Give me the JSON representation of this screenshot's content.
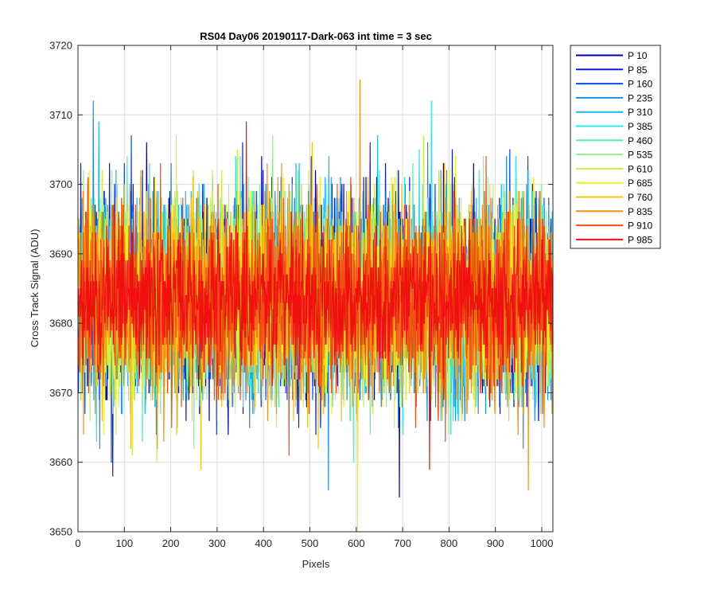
{
  "chart_data": {
    "type": "line",
    "title": "RS04 Day06 20190117-Dark-063 int time = 3 sec",
    "xlabel": "Pixels",
    "ylabel": "Cross Track Signal (ADU)",
    "xlim": [
      0,
      1024
    ],
    "ylim": [
      3650,
      3720
    ],
    "xticks": [
      "0",
      "100",
      "200",
      "300",
      "400",
      "500",
      "600",
      "700",
      "800",
      "900",
      "1000"
    ],
    "yticks": [
      "3650",
      "3660",
      "3670",
      "3680",
      "3690",
      "3700",
      "3710",
      "3720"
    ],
    "grid": true,
    "legend_position": "outside-top-right",
    "x": {
      "start": 1,
      "end": 1024,
      "step": 1
    },
    "series": [
      {
        "name": "P 10",
        "color": "#0000b0",
        "mean": 3683.5,
        "std": 7.0,
        "seed": 11,
        "extremes": [
          [
            148,
            3706
          ],
          [
            693,
            3655
          ]
        ]
      },
      {
        "name": "P 85",
        "color": "#0b1ad8",
        "mean": 3683.5,
        "std": 7.0,
        "seed": 23,
        "extremes": [
          [
            75,
            3658
          ],
          [
            355,
            3706
          ]
        ]
      },
      {
        "name": "P 160",
        "color": "#0050e8",
        "mean": 3683.5,
        "std": 7.0,
        "seed": 37,
        "extremes": [
          [
            115,
            3707
          ],
          [
            970,
            3704
          ]
        ]
      },
      {
        "name": "P 235",
        "color": "#1890f0",
        "mean": 3683.5,
        "std": 7.0,
        "seed": 41,
        "extremes": [
          [
            33,
            3712
          ],
          [
            540,
            3656
          ]
        ]
      },
      {
        "name": "P 310",
        "color": "#18b8f0",
        "mean": 3683.5,
        "std": 7.0,
        "seed": 53,
        "extremes": [
          [
            45,
            3709
          ],
          [
            470,
            3703
          ]
        ]
      },
      {
        "name": "P 385",
        "color": "#2ee8e8",
        "mean": 3683.5,
        "std": 7.0,
        "seed": 67,
        "extremes": [
          [
            762,
            3712
          ],
          [
            40,
            3663
          ]
        ]
      },
      {
        "name": "P 460",
        "color": "#5ee8c0",
        "mean": 3683.5,
        "std": 7.0,
        "seed": 71,
        "extremes": [
          [
            350,
            3704
          ],
          [
            630,
            3664
          ]
        ]
      },
      {
        "name": "P 535",
        "color": "#90f090",
        "mean": 3683.5,
        "std": 7.0,
        "seed": 83,
        "extremes": [
          [
            420,
            3707
          ],
          [
            250,
            3662
          ]
        ]
      },
      {
        "name": "P 610",
        "color": "#c8f040",
        "mean": 3683.5,
        "std": 7.0,
        "seed": 97,
        "extremes": [
          [
            745,
            3707
          ],
          [
            170,
            3660
          ]
        ]
      },
      {
        "name": "P 685",
        "color": "#f0f020",
        "mean": 3683.5,
        "std": 7.0,
        "seed": 101,
        "extremes": [
          [
            603,
            3650
          ],
          [
            212,
            3707
          ]
        ]
      },
      {
        "name": "P 760",
        "color": "#f8c010",
        "mean": 3683.5,
        "std": 7.0,
        "seed": 113,
        "extremes": [
          [
            265,
            3659
          ],
          [
            505,
            3706
          ]
        ]
      },
      {
        "name": "P 835",
        "color": "#f89010",
        "mean": 3683.5,
        "std": 7.0,
        "seed": 127,
        "extremes": [
          [
            608,
            3715
          ],
          [
            971,
            3656
          ]
        ]
      },
      {
        "name": "P 910",
        "color": "#f05010",
        "mean": 3683.5,
        "std": 7.0,
        "seed": 131,
        "extremes": [
          [
            455,
            3661
          ],
          [
            880,
            3704
          ]
        ]
      },
      {
        "name": "P 985",
        "color": "#f01010",
        "mean": 3683.5,
        "std": 4.8,
        "seed": 139,
        "extremes": [
          [
            363,
            3709
          ],
          [
            758,
            3659
          ]
        ]
      }
    ]
  }
}
